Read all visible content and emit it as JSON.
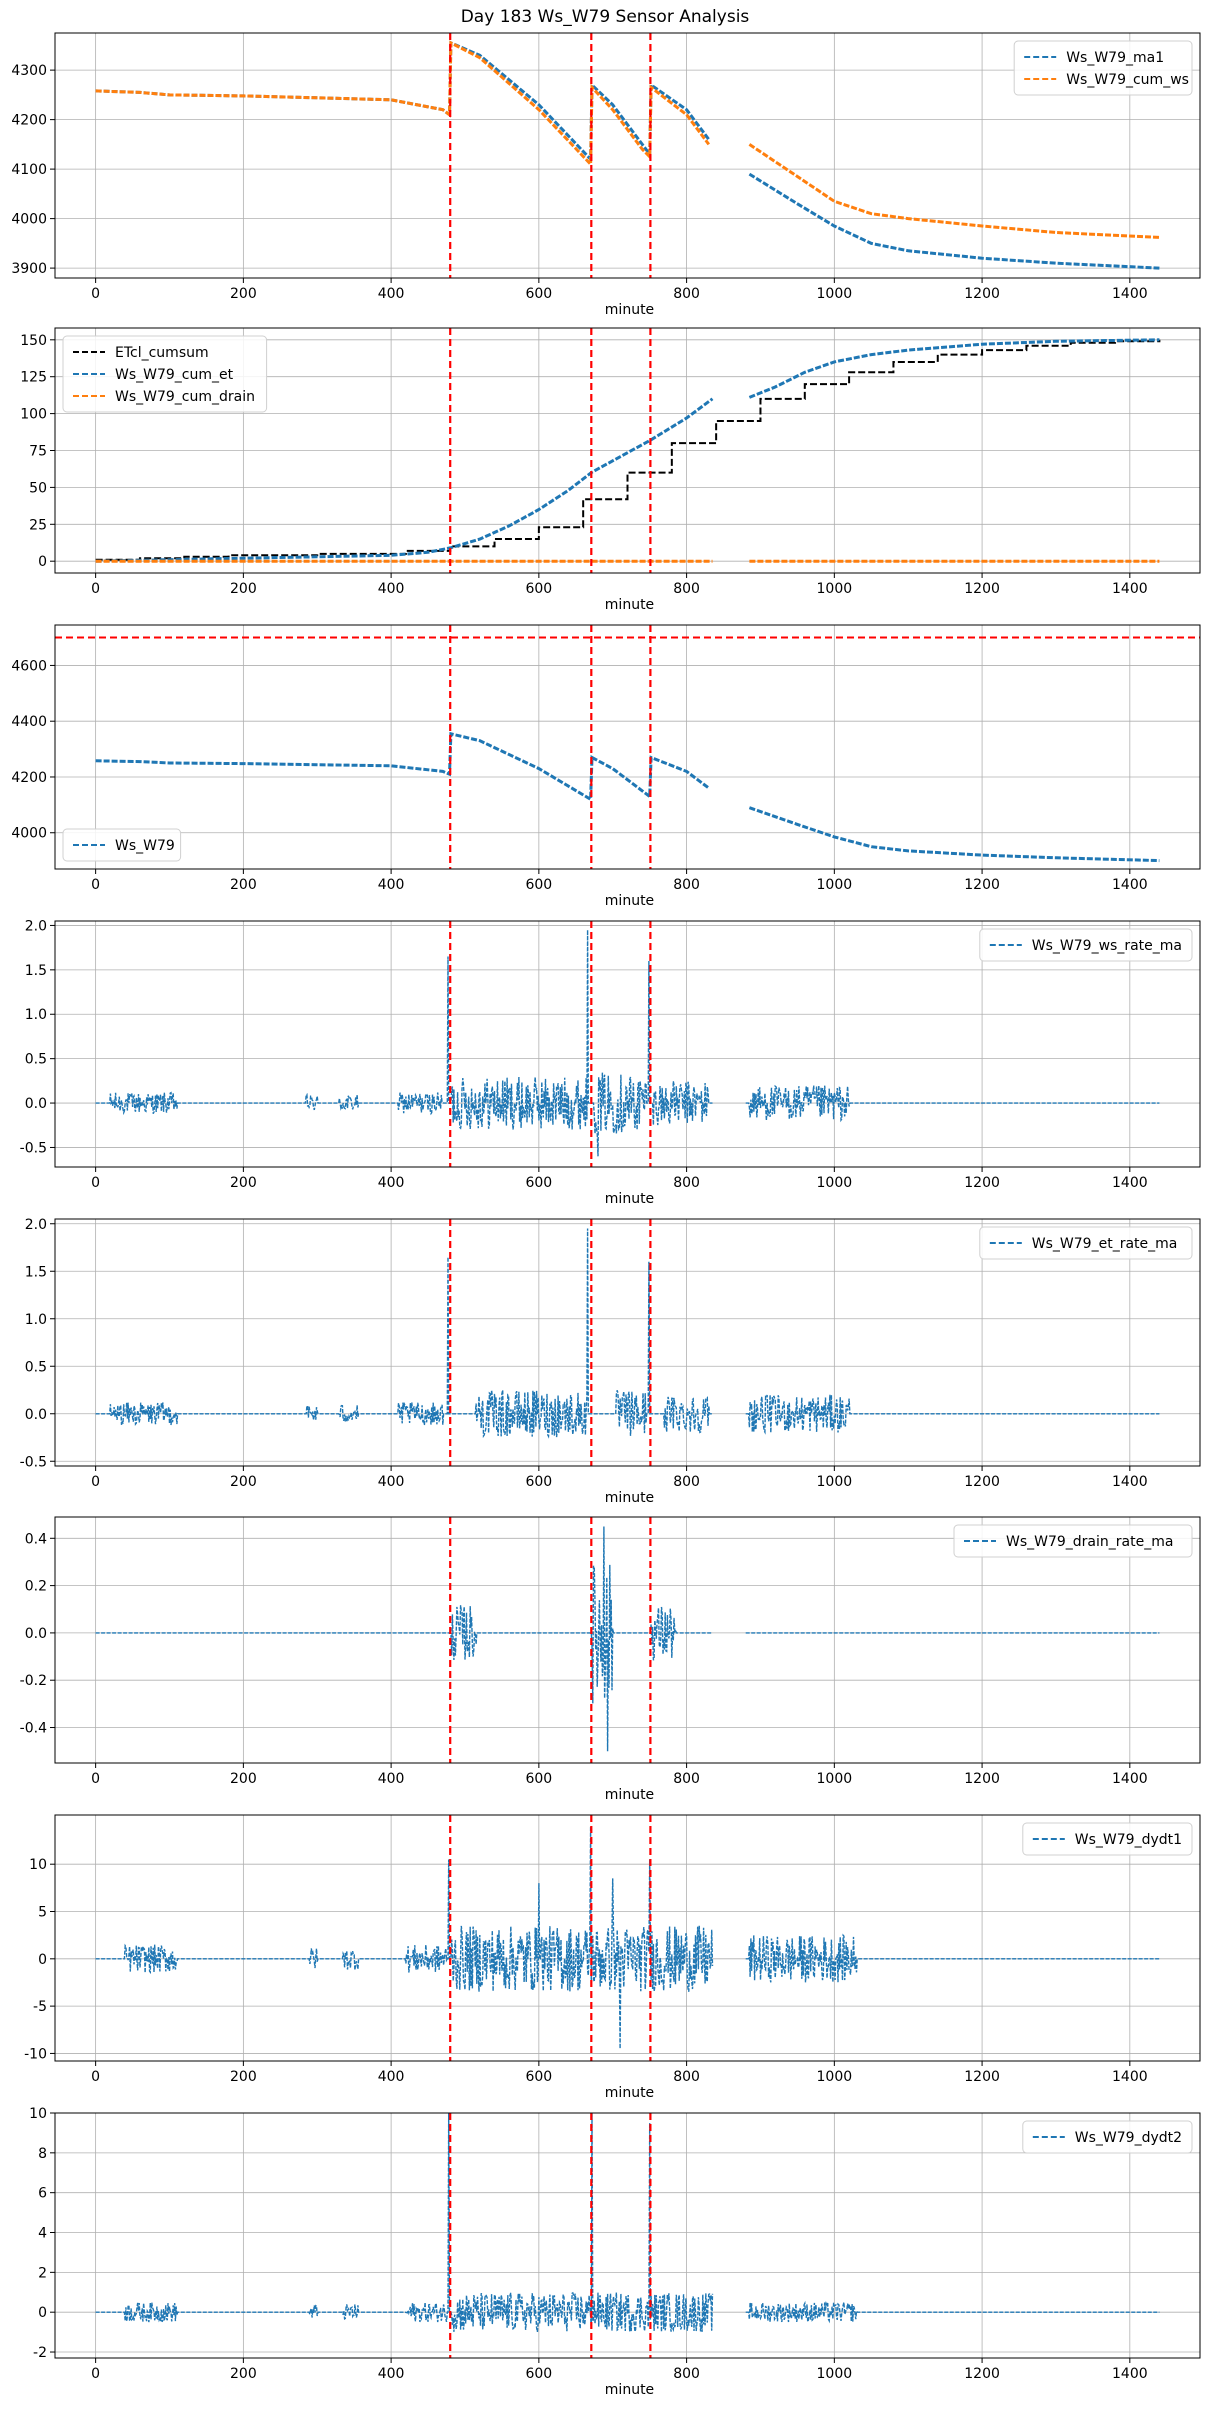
{
  "figure_title": "Day 183 Ws_W79 Sensor Analysis",
  "colors": {
    "blue": "#1f77b4",
    "orange": "#ff7f0e",
    "black": "#000000",
    "red": "#ff0000",
    "grid": "#b0b0b0"
  },
  "chart_data": [
    {
      "type": "line",
      "xlabel": "minute",
      "ylabel": "",
      "xlim": [
        -55,
        1495
      ],
      "ylim": [
        3880,
        4375
      ],
      "xticks": [
        0,
        200,
        400,
        600,
        800,
        1000,
        1200,
        1400
      ],
      "yticks": [
        3900,
        4000,
        4100,
        4200,
        4300
      ],
      "legend_position": "top-right",
      "vlines": [
        480,
        671,
        751
      ],
      "hlines": [],
      "series": [
        {
          "name": "Ws_W79_ma1",
          "color": "#1f77b4",
          "style": "dashed",
          "x": [
            0,
            60,
            100,
            200,
            300,
            400,
            470,
            479,
            481,
            520,
            600,
            670,
            672,
            700,
            740,
            750,
            752,
            800,
            830,
            885,
            950,
            1000,
            1050,
            1100,
            1200,
            1300,
            1440
          ],
          "y": [
            4258,
            4255,
            4250,
            4248,
            4244,
            4240,
            4220,
            4210,
            4355,
            4330,
            4230,
            4120,
            4270,
            4230,
            4150,
            4130,
            4270,
            4220,
            4160,
            4090,
            4030,
            3985,
            3950,
            3935,
            3920,
            3910,
            3900
          ],
          "gaps": [
            [
              835,
              880
            ]
          ]
        },
        {
          "name": "Ws_W79_cum_ws",
          "color": "#ff7f0e",
          "style": "dashed",
          "x": [
            0,
            60,
            100,
            200,
            300,
            400,
            470,
            479,
            481,
            520,
            600,
            670,
            672,
            700,
            740,
            750,
            752,
            800,
            830,
            885,
            950,
            1000,
            1050,
            1100,
            1200,
            1300,
            1440
          ],
          "y": [
            4258,
            4255,
            4250,
            4248,
            4244,
            4240,
            4220,
            4210,
            4355,
            4325,
            4220,
            4110,
            4265,
            4220,
            4140,
            4125,
            4265,
            4210,
            4150,
            4150,
            4085,
            4035,
            4010,
            4000,
            3985,
            3972,
            3962
          ],
          "gaps": [
            [
              835,
              880
            ]
          ]
        }
      ]
    },
    {
      "type": "line",
      "xlabel": "minute",
      "ylabel": "",
      "xlim": [
        -55,
        1495
      ],
      "ylim": [
        -8,
        158
      ],
      "xticks": [
        0,
        200,
        400,
        600,
        800,
        1000,
        1200,
        1400
      ],
      "yticks": [
        0,
        25,
        50,
        75,
        100,
        125,
        150
      ],
      "legend_position": "top-left",
      "vlines": [
        480,
        671,
        751
      ],
      "hlines": [],
      "series": [
        {
          "name": "ETcl_cumsum",
          "color": "#000000",
          "style": "dashed-steps",
          "x": [
            0,
            60,
            120,
            180,
            240,
            300,
            360,
            420,
            480,
            540,
            600,
            660,
            720,
            780,
            840,
            900,
            960,
            1020,
            1080,
            1140,
            1200,
            1260,
            1320,
            1380,
            1440
          ],
          "y": [
            1,
            2,
            3,
            4,
            4,
            5,
            5,
            7,
            10,
            15,
            23,
            42,
            60,
            80,
            95,
            110,
            120,
            128,
            135,
            140,
            143,
            146,
            148,
            149,
            150
          ]
        },
        {
          "name": "Ws_W79_cum_et",
          "color": "#1f77b4",
          "style": "dashed",
          "x": [
            0,
            100,
            200,
            300,
            400,
            450,
            480,
            520,
            560,
            600,
            640,
            671,
            700,
            751,
            800,
            835,
            885,
            920,
            960,
            1000,
            1050,
            1100,
            1200,
            1300,
            1440
          ],
          "y": [
            0,
            1,
            2,
            3,
            4,
            6,
            9,
            15,
            24,
            35,
            48,
            60,
            68,
            82,
            97,
            110,
            111,
            118,
            128,
            135,
            140,
            143,
            147,
            149,
            150
          ],
          "gaps": [
            [
              835,
              880
            ]
          ]
        },
        {
          "name": "Ws_W79_cum_drain",
          "color": "#ff7f0e",
          "style": "dashed",
          "x": [
            0,
            835,
            885,
            1440
          ],
          "y": [
            0,
            0,
            0,
            0
          ],
          "gaps": [
            [
              835,
              880
            ]
          ]
        }
      ]
    },
    {
      "type": "line",
      "xlabel": "minute",
      "ylabel": "",
      "xlim": [
        -55,
        1495
      ],
      "ylim": [
        3870,
        4745
      ],
      "xticks": [
        0,
        200,
        400,
        600,
        800,
        1000,
        1200,
        1400
      ],
      "yticks": [
        4000,
        4200,
        4400,
        4600
      ],
      "legend_position": "bottom-left",
      "vlines": [
        480,
        671,
        751
      ],
      "hlines": [
        4700
      ],
      "series": [
        {
          "name": "Ws_W79",
          "color": "#1f77b4",
          "style": "dashed",
          "x": [
            0,
            60,
            100,
            200,
            300,
            400,
            470,
            479,
            481,
            520,
            600,
            670,
            672,
            700,
            740,
            750,
            752,
            800,
            830,
            885,
            950,
            1000,
            1050,
            1100,
            1200,
            1300,
            1440
          ],
          "y": [
            4258,
            4255,
            4250,
            4248,
            4244,
            4240,
            4220,
            4210,
            4355,
            4330,
            4230,
            4120,
            4270,
            4230,
            4150,
            4130,
            4270,
            4220,
            4160,
            4090,
            4030,
            3985,
            3950,
            3935,
            3920,
            3910,
            3900
          ],
          "gaps": [
            [
              835,
              880
            ]
          ]
        }
      ]
    },
    {
      "type": "line",
      "xlabel": "minute",
      "ylabel": "",
      "xlim": [
        -55,
        1495
      ],
      "ylim": [
        -0.72,
        2.05
      ],
      "xticks": [
        0,
        200,
        400,
        600,
        800,
        1000,
        1200,
        1400
      ],
      "yticks": [
        -0.5,
        0.0,
        0.5,
        1.0,
        1.5,
        2.0
      ],
      "yticklabels": [
        "-0.5",
        "0.0",
        "0.5",
        "1.0",
        "1.5",
        "2.0"
      ],
      "legend_position": "top-right",
      "vlines": [
        480,
        671,
        751
      ],
      "hlines": [],
      "series": [
        {
          "name": "Ws_W79_ws_rate_ma",
          "color": "#1f77b4",
          "style": "noise",
          "baseline": 0,
          "bursts": [
            [
              20,
              110,
              0.12
            ],
            [
              285,
              300,
              0.1
            ],
            [
              330,
              355,
              0.1
            ],
            [
              410,
              470,
              0.12
            ],
            [
              482,
              665,
              0.3
            ],
            [
              675,
              745,
              0.35
            ],
            [
              755,
              830,
              0.25
            ],
            [
              885,
              1020,
              0.2
            ]
          ],
          "spikes": [
            [
              477,
              1.65
            ],
            [
              666,
              1.95
            ],
            [
              749,
              1.6
            ],
            [
              680,
              -0.6
            ]
          ],
          "gaps": [
            [
              835,
              880
            ]
          ]
        }
      ]
    },
    {
      "type": "line",
      "xlabel": "minute",
      "ylabel": "",
      "xlim": [
        -55,
        1495
      ],
      "ylim": [
        -0.55,
        2.05
      ],
      "xticks": [
        0,
        200,
        400,
        600,
        800,
        1000,
        1200,
        1400
      ],
      "yticks": [
        -0.5,
        0.0,
        0.5,
        1.0,
        1.5,
        2.0
      ],
      "yticklabels": [
        "-0.5",
        "0.0",
        "0.5",
        "1.0",
        "1.5",
        "2.0"
      ],
      "legend_position": "top-right",
      "vlines": [
        480,
        671,
        751
      ],
      "hlines": [],
      "series": [
        {
          "name": "Ws_W79_et_rate_ma",
          "color": "#1f77b4",
          "style": "noise",
          "baseline": 0,
          "bursts": [
            [
              20,
              110,
              0.12
            ],
            [
              285,
              300,
              0.1
            ],
            [
              330,
              355,
              0.1
            ],
            [
              410,
              470,
              0.12
            ],
            [
              515,
              665,
              0.25
            ],
            [
              705,
              745,
              0.25
            ],
            [
              770,
              830,
              0.2
            ],
            [
              885,
              1020,
              0.2
            ]
          ],
          "spikes": [
            [
              477,
              1.65
            ],
            [
              666,
              1.95
            ],
            [
              749,
              1.6
            ]
          ],
          "gaps": [
            [
              835,
              880
            ]
          ]
        }
      ]
    },
    {
      "type": "line",
      "xlabel": "minute",
      "ylabel": "",
      "xlim": [
        -55,
        1495
      ],
      "ylim": [
        -0.55,
        0.49
      ],
      "xticks": [
        0,
        200,
        400,
        600,
        800,
        1000,
        1200,
        1400
      ],
      "yticks": [
        -0.4,
        -0.2,
        0.0,
        0.2,
        0.4
      ],
      "yticklabels": [
        "-0.4",
        "-0.2",
        "0.0",
        "0.2",
        "0.4"
      ],
      "legend_position": "top-right",
      "vlines": [
        480,
        671,
        751
      ],
      "hlines": [],
      "series": [
        {
          "name": "Ws_W79_drain_rate_ma",
          "color": "#1f77b4",
          "style": "noise",
          "baseline": 0,
          "bursts": [
            [
              482,
              515,
              0.12
            ],
            [
              672,
              700,
              0.3
            ],
            [
              752,
              785,
              0.12
            ]
          ],
          "spikes": [
            [
              688,
              0.45
            ],
            [
              693,
              -0.5
            ]
          ],
          "gaps": [
            [
              835,
              880
            ]
          ]
        }
      ]
    },
    {
      "type": "line",
      "xlabel": "minute",
      "ylabel": "",
      "xlim": [
        -55,
        1495
      ],
      "ylim": [
        -10.8,
        15.2
      ],
      "xticks": [
        0,
        200,
        400,
        600,
        800,
        1000,
        1200,
        1400
      ],
      "yticks": [
        -10,
        -5,
        0,
        5,
        10
      ],
      "legend_position": "top-right",
      "vlines": [
        480,
        671,
        751
      ],
      "hlines": [],
      "series": [
        {
          "name": "Ws_W79_dydt1",
          "color": "#1f77b4",
          "style": "noise",
          "baseline": 0,
          "bursts": [
            [
              40,
              110,
              1.5
            ],
            [
              290,
              300,
              1.2
            ],
            [
              335,
              355,
              1.2
            ],
            [
              420,
              475,
              1.5
            ],
            [
              482,
              835,
              3.5
            ],
            [
              885,
              1030,
              2.5
            ]
          ],
          "spikes": [
            [
              478,
              10.5
            ],
            [
              670,
              14
            ],
            [
              750,
              10.5
            ],
            [
              700,
              8.5
            ],
            [
              710,
              -9.5
            ],
            [
              600,
              8
            ]
          ],
          "gaps": [
            [
              835,
              880
            ]
          ]
        }
      ]
    },
    {
      "type": "line",
      "xlabel": "minute",
      "ylabel": "",
      "xlim": [
        -55,
        1495
      ],
      "ylim": [
        -2.3,
        10.0
      ],
      "xticks": [
        0,
        200,
        400,
        600,
        800,
        1000,
        1200,
        1400
      ],
      "yticks": [
        -2,
        0,
        2,
        4,
        6,
        8,
        10
      ],
      "legend_position": "top-right",
      "vlines": [
        480,
        671,
        751
      ],
      "hlines": [],
      "series": [
        {
          "name": "Ws_W79_dydt2",
          "color": "#1f77b4",
          "style": "noise",
          "baseline": 0,
          "bursts": [
            [
              40,
              110,
              0.5
            ],
            [
              290,
              300,
              0.4
            ],
            [
              335,
              355,
              0.4
            ],
            [
              420,
              475,
              0.5
            ],
            [
              482,
              835,
              1.0
            ],
            [
              885,
              1030,
              0.5
            ]
          ],
          "spikes": [
            [
              478,
              10
            ],
            [
              672,
              10
            ],
            [
              750,
              9.5
            ]
          ],
          "gaps": [
            [
              835,
              880
            ]
          ]
        }
      ]
    }
  ]
}
